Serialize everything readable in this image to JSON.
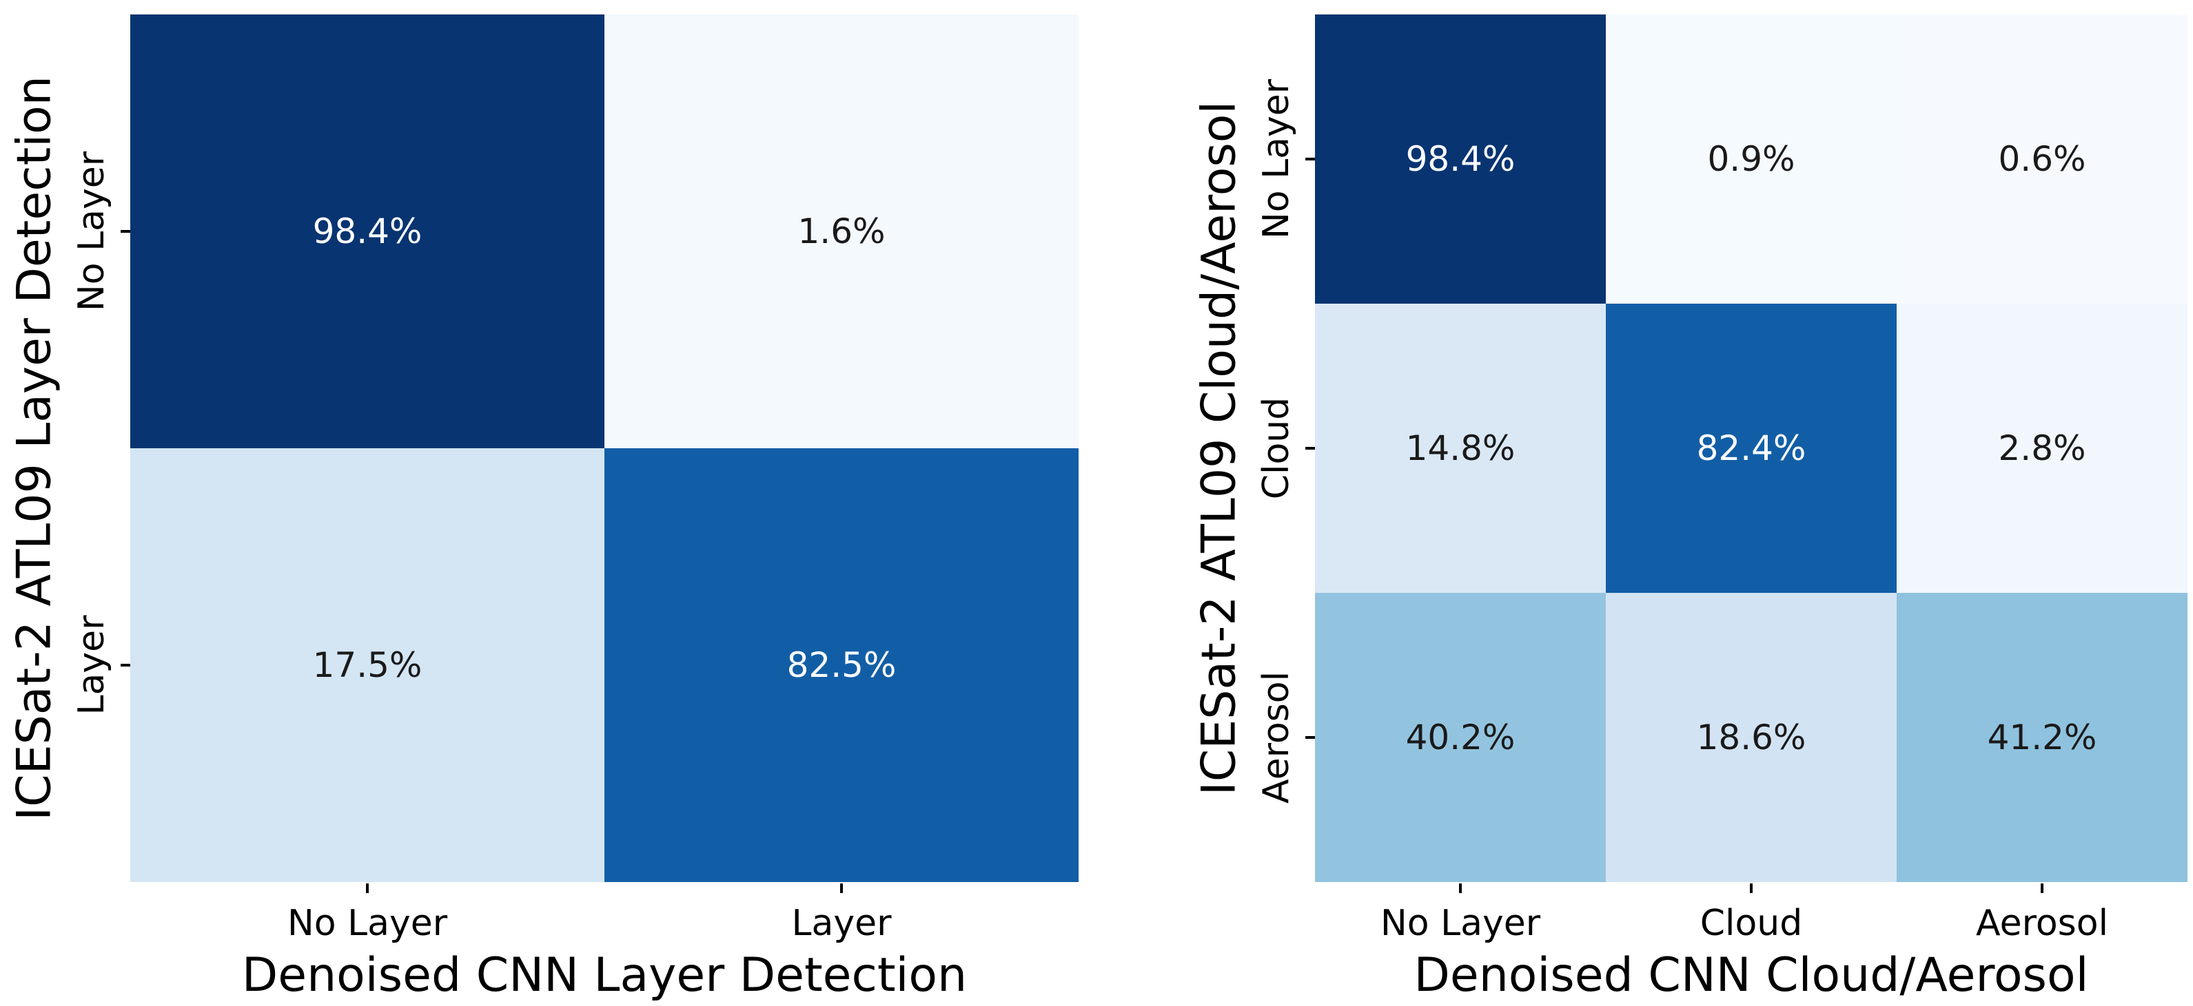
{
  "colors": {
    "background": "#ffffff",
    "tick_and_label_text": "#000000",
    "annotation_on_light_cell": "#1a1a1a",
    "annotation_on_dark_cell": "#ffffff",
    "blues_colormap_anchors": [
      "#f7fbff",
      "#deebf7",
      "#c6dbef",
      "#9ecae1",
      "#6baed6",
      "#4292c6",
      "#2171b5",
      "#08519c",
      "#08306b"
    ]
  },
  "chart_data": [
    {
      "type": "heatmap",
      "colormap": "Blues",
      "xlabel": "Denoised CNN Layer Detection",
      "ylabel": "ICESat-2 ATL09 Layer Detection",
      "x_categories": [
        "No Layer",
        "Layer"
      ],
      "y_categories": [
        "No Layer",
        "Layer"
      ],
      "values_percent": [
        [
          98.4,
          1.6
        ],
        [
          17.5,
          82.5
        ]
      ],
      "cell_labels": [
        [
          "98.4%",
          "1.6%"
        ],
        [
          "17.5%",
          "82.5%"
        ]
      ],
      "value_range": [
        0,
        100
      ],
      "grid": "off",
      "legend": "none",
      "colorbar": "none",
      "y_tick_rotation_deg": 90
    },
    {
      "type": "heatmap",
      "colormap": "Blues",
      "xlabel": "Denoised CNN Cloud/Aerosol",
      "ylabel": "ICESat-2 ATL09 Cloud/Aerosol",
      "x_categories": [
        "No Layer",
        "Cloud",
        "Aerosol"
      ],
      "y_categories": [
        "No Layer",
        "Cloud",
        "Aerosol"
      ],
      "values_percent": [
        [
          98.4,
          0.9,
          0.6
        ],
        [
          14.8,
          82.4,
          2.8
        ],
        [
          40.2,
          18.6,
          41.2
        ]
      ],
      "cell_labels": [
        [
          "98.4%",
          "0.9%",
          "0.6%"
        ],
        [
          "14.8%",
          "82.4%",
          "2.8%"
        ],
        [
          "40.2%",
          "18.6%",
          "41.2%"
        ]
      ],
      "value_range": [
        0,
        100
      ],
      "grid": "off",
      "legend": "none",
      "colorbar": "none",
      "y_tick_rotation_deg": 90
    }
  ]
}
